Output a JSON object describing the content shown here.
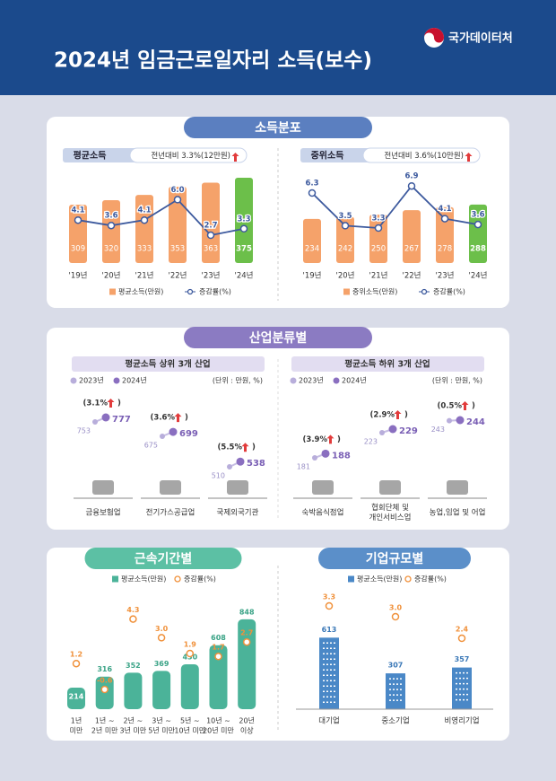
{
  "header": {
    "title": "2024년 임금근로일자리 소득(보수)",
    "logo": "국가데이터처"
  },
  "income_distribution": {
    "title": "소득분포",
    "panels": [
      {
        "label": "평균소득",
        "note": "전년대비 3.3%(12만원)",
        "categories": [
          "'19년",
          "'20년",
          "'21년",
          "'22년",
          "'23년",
          "'24년"
        ],
        "values": [
          309,
          320,
          333,
          353,
          363,
          375
        ],
        "rates": [
          4.1,
          3.6,
          4.1,
          6.0,
          2.7,
          3.3
        ],
        "rate_labels": [
          "4.1",
          "3.6",
          "4.1",
          "6.0",
          "2.7",
          "3.3"
        ],
        "legend": [
          "평균소득(만원)",
          "증감률(%)"
        ]
      },
      {
        "label": "중위소득",
        "note": "전년대비 3.6%(10만원)",
        "categories": [
          "'19년",
          "'20년",
          "'21년",
          "'22년",
          "'23년",
          "'24년"
        ],
        "values": [
          234,
          242,
          250,
          267,
          278,
          288
        ],
        "rates": [
          6.3,
          3.5,
          3.3,
          6.9,
          4.1,
          3.6
        ],
        "rate_labels": [
          "6.3",
          "3.5",
          "3.3",
          "6.9",
          "4.1",
          "3.6"
        ],
        "legend": [
          "중위소득(만원)",
          "증감률(%)"
        ]
      }
    ]
  },
  "industry": {
    "title": "산업분류별",
    "legend": [
      "2023년",
      "2024년"
    ],
    "close": ")",
    "groups": [
      {
        "title": "평균소득 상위 3개 산업",
        "unit": "(단위 : 만원, %)",
        "items": [
          {
            "name": [
              "금융보험업"
            ],
            "v2023": 753,
            "v2024": 777,
            "rate": 3.1,
            "rate_label": "(3.1%"
          },
          {
            "name": [
              "전기가스공급업"
            ],
            "v2023": 675,
            "v2024": 699,
            "rate": 3.6,
            "rate_label": "(3.6%"
          },
          {
            "name": [
              "국제외국기관"
            ],
            "v2023": 510,
            "v2024": 538,
            "rate": 5.5,
            "rate_label": "(5.5%"
          }
        ]
      },
      {
        "title": "평균소득 하위 3개 산업",
        "unit": "(단위 : 만원, %)",
        "items": [
          {
            "name": [
              "숙박음식점업"
            ],
            "v2023": 181,
            "v2024": 188,
            "rate": 3.9,
            "rate_label": "(3.9%"
          },
          {
            "name": [
              "협회단체 및",
              "개인서비스업"
            ],
            "v2023": 223,
            "v2024": 229,
            "rate": 2.9,
            "rate_label": "(2.9%"
          },
          {
            "name": [
              "농업,임업 및 어업"
            ],
            "v2023": 243,
            "v2024": 244,
            "rate": 0.5,
            "rate_label": "(0.5%"
          }
        ]
      }
    ]
  },
  "tenure": {
    "title": "근속기간별",
    "legend": [
      "평균소득(만원)",
      "증감률(%)"
    ],
    "categories": [
      [
        "1년",
        "미만"
      ],
      [
        "1년 ~",
        "2년 미만"
      ],
      [
        "2년 ~",
        "3년 미만"
      ],
      [
        "3년 ~",
        "5년 미만"
      ],
      [
        "5년 ~",
        "10년 미만"
      ],
      [
        "10년 ~",
        "20년 미만"
      ],
      [
        "20년",
        "이상"
      ]
    ],
    "values": [
      214,
      316,
      352,
      369,
      430,
      608,
      848
    ],
    "rates": [
      1.2,
      -0.6,
      4.3,
      3.0,
      1.9,
      1.7,
      2.7
    ],
    "rate_labels": [
      "1.2",
      "-0.6",
      "4.3",
      "3.0",
      "1.9",
      "1.7",
      "2.7"
    ]
  },
  "firm_size": {
    "title": "기업규모별",
    "legend": [
      "평균소득(만원)",
      "증감률(%)"
    ],
    "categories": [
      "대기업",
      "중소기업",
      "비영리기업"
    ],
    "values": [
      613,
      307,
      357
    ],
    "rates": [
      3.3,
      3.0,
      2.4
    ],
    "rate_labels": [
      "3.3",
      "3.0",
      "2.4"
    ]
  }
}
